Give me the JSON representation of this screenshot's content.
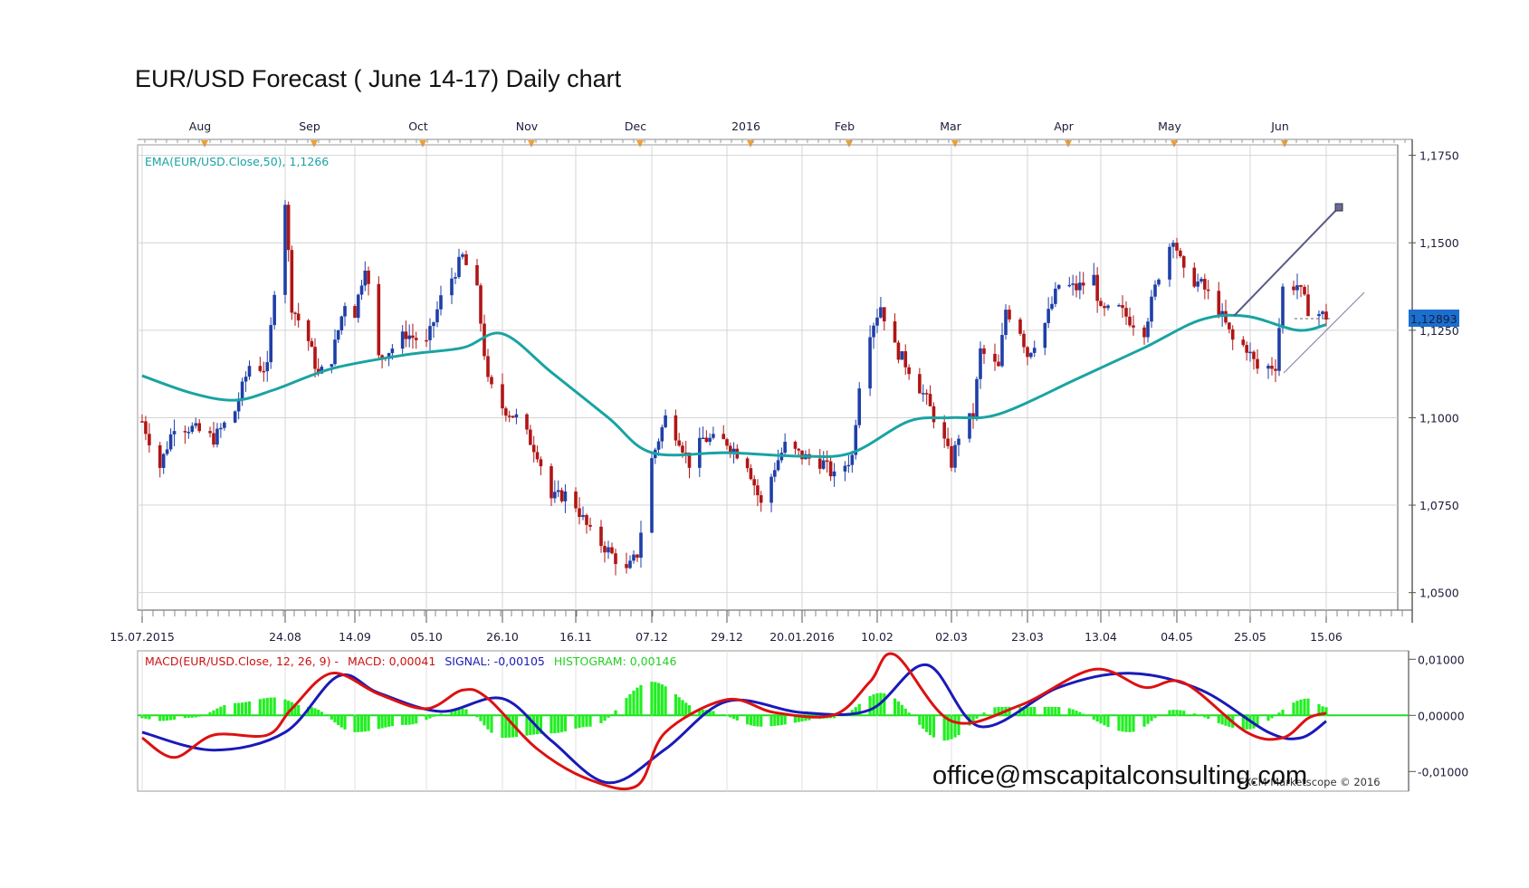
{
  "title": "EUR/USD Forecast ( June 14-17) Daily chart",
  "watermark": "office@mscapitalconsulting.com",
  "credit": "FXCM Marketscope © 2016",
  "colors": {
    "bull": "#1f3fa8",
    "bear": "#b01515",
    "ema": "#1aa3a3",
    "macd": "#dd1111",
    "signal": "#1a1ab8",
    "histogram": "#22ee22",
    "price_tag": "#1a6fd0"
  },
  "chart_data": [
    {
      "type": "candlestick",
      "ylim": [
        1.045,
        1.178
      ],
      "y_ticks": [
        "1,1750",
        "1,1500",
        "1,1250",
        "1,1000",
        "1,0750",
        "1,0500"
      ],
      "x_tick_labels": [
        "15.07.2015",
        "24.08",
        "14.09",
        "05.10",
        "26.10",
        "16.11",
        "07.12",
        "29.12",
        "20.01.2016",
        "10.02",
        "02.03",
        "23.03",
        "13.04",
        "04.05",
        "25.05",
        "15.06"
      ],
      "month_labels": [
        "Aug",
        "Sep",
        "Oct",
        "Nov",
        "Dec",
        "2016",
        "Feb",
        "Mar",
        "Apr",
        "May",
        "Jun"
      ],
      "indicator": {
        "label": "EMA(EUR/USD.Close,50), 1,1266"
      },
      "current_price": "1,12893",
      "close_path": [
        {
          "d": "15.07.2015",
          "v": 1.099
        },
        {
          "d": "20.07",
          "v": 1.086
        },
        {
          "d": "24.07",
          "v": 1.098
        },
        {
          "d": "29.07",
          "v": 1.097
        },
        {
          "d": "04.08",
          "v": 1.094
        },
        {
          "d": "10.08",
          "v": 1.102
        },
        {
          "d": "14.08",
          "v": 1.115
        },
        {
          "d": "19.08",
          "v": 1.114
        },
        {
          "d": "21.08",
          "v": 1.137
        },
        {
          "d": "24.08",
          "v": 1.162
        },
        {
          "d": "26.08",
          "v": 1.132
        },
        {
          "d": "31.08",
          "v": 1.122
        },
        {
          "d": "03.09",
          "v": 1.112
        },
        {
          "d": "07.09",
          "v": 1.117
        },
        {
          "d": "11.09",
          "v": 1.133
        },
        {
          "d": "14.09",
          "v": 1.13
        },
        {
          "d": "17.09",
          "v": 1.144
        },
        {
          "d": "21.09",
          "v": 1.117
        },
        {
          "d": "25.09",
          "v": 1.12
        },
        {
          "d": "29.09",
          "v": 1.124
        },
        {
          "d": "05.10",
          "v": 1.121
        },
        {
          "d": "09.10",
          "v": 1.134
        },
        {
          "d": "15.10",
          "v": 1.146
        },
        {
          "d": "19.10",
          "v": 1.136
        },
        {
          "d": "22.10",
          "v": 1.11
        },
        {
          "d": "26.10",
          "v": 1.103
        },
        {
          "d": "30.10",
          "v": 1.1
        },
        {
          "d": "05.11",
          "v": 1.09
        },
        {
          "d": "09.11",
          "v": 1.077
        },
        {
          "d": "13.11",
          "v": 1.078
        },
        {
          "d": "16.11",
          "v": 1.075
        },
        {
          "d": "20.11",
          "v": 1.067
        },
        {
          "d": "25.11",
          "v": 1.062
        },
        {
          "d": "30.11",
          "v": 1.056
        },
        {
          "d": "03.12",
          "v": 1.061
        },
        {
          "d": "07.12",
          "v": 1.088
        },
        {
          "d": "11.12",
          "v": 1.1
        },
        {
          "d": "15.12",
          "v": 1.094
        },
        {
          "d": "18.12",
          "v": 1.087
        },
        {
          "d": "22.12",
          "v": 1.094
        },
        {
          "d": "29.12",
          "v": 1.093
        },
        {
          "d": "04.01",
          "v": 1.087
        },
        {
          "d": "08.01",
          "v": 1.075
        },
        {
          "d": "12.01",
          "v": 1.086
        },
        {
          "d": "15.01",
          "v": 1.092
        },
        {
          "d": "20.01.2016",
          "v": 1.089
        },
        {
          "d": "26.01",
          "v": 1.087
        },
        {
          "d": "29.01",
          "v": 1.083
        },
        {
          "d": "03.02",
          "v": 1.089
        },
        {
          "d": "05.02",
          "v": 1.11
        },
        {
          "d": "08.02",
          "v": 1.125
        },
        {
          "d": "11.02",
          "v": 1.132
        },
        {
          "d": "15.02",
          "v": 1.12
        },
        {
          "d": "19.02",
          "v": 1.114
        },
        {
          "d": "24.02",
          "v": 1.105
        },
        {
          "d": "29.02",
          "v": 1.093
        },
        {
          "d": "02.03",
          "v": 1.087
        },
        {
          "d": "04.03",
          "v": 1.095
        },
        {
          "d": "08.03",
          "v": 1.101
        },
        {
          "d": "10.03",
          "v": 1.119
        },
        {
          "d": "15.03",
          "v": 1.114
        },
        {
          "d": "17.03",
          "v": 1.131
        },
        {
          "d": "21.03",
          "v": 1.125
        },
        {
          "d": "23.03",
          "v": 1.118
        },
        {
          "d": "28.03",
          "v": 1.127
        },
        {
          "d": "01.04",
          "v": 1.138
        },
        {
          "d": "06.04",
          "v": 1.137
        },
        {
          "d": "11.04",
          "v": 1.14
        },
        {
          "d": "13.04",
          "v": 1.13
        },
        {
          "d": "18.04",
          "v": 1.131
        },
        {
          "d": "21.04",
          "v": 1.128
        },
        {
          "d": "25.04",
          "v": 1.125
        },
        {
          "d": "29.04",
          "v": 1.141
        },
        {
          "d": "03.05",
          "v": 1.152
        },
        {
          "d": "06.05",
          "v": 1.141
        },
        {
          "d": "11.05",
          "v": 1.138
        },
        {
          "d": "16.05",
          "v": 1.131
        },
        {
          "d": "20.05",
          "v": 1.122
        },
        {
          "d": "24.05",
          "v": 1.12
        },
        {
          "d": "27.05",
          "v": 1.114
        },
        {
          "d": "01.06",
          "v": 1.115
        },
        {
          "d": "03.06",
          "v": 1.137
        },
        {
          "d": "07.06",
          "v": 1.138
        },
        {
          "d": "10.06",
          "v": 1.131
        },
        {
          "d": "15.06",
          "v": 1.1289
        }
      ],
      "ema_path": [
        {
          "d": "15.07.2015",
          "v": 1.112
        },
        {
          "d": "29.07",
          "v": 1.107
        },
        {
          "d": "10.08",
          "v": 1.105
        },
        {
          "d": "21.08",
          "v": 1.108
        },
        {
          "d": "07.09",
          "v": 1.114
        },
        {
          "d": "29.09",
          "v": 1.118
        },
        {
          "d": "15.10",
          "v": 1.12
        },
        {
          "d": "26.10",
          "v": 1.124
        },
        {
          "d": "09.11",
          "v": 1.113
        },
        {
          "d": "25.11",
          "v": 1.1
        },
        {
          "d": "07.12",
          "v": 1.09
        },
        {
          "d": "29.12",
          "v": 1.09
        },
        {
          "d": "20.01.2016",
          "v": 1.089
        },
        {
          "d": "03.02",
          "v": 1.09
        },
        {
          "d": "19.02",
          "v": 1.099
        },
        {
          "d": "02.03",
          "v": 1.1
        },
        {
          "d": "15.03",
          "v": 1.101
        },
        {
          "d": "06.04",
          "v": 1.111
        },
        {
          "d": "25.04",
          "v": 1.12
        },
        {
          "d": "11.05",
          "v": 1.128
        },
        {
          "d": "24.05",
          "v": 1.129
        },
        {
          "d": "07.06",
          "v": 1.125
        },
        {
          "d": "15.06",
          "v": 1.1266
        }
      ]
    },
    {
      "type": "line",
      "label": {
        "prefix": "MACD(EUR/USD.Close, 12, 26, 9) -",
        "macd": "MACD: 0,00041",
        "signal": "SIGNAL: -0,00105",
        "histogram": "HISTOGRAM: 0,00146"
      },
      "ylim": [
        -0.0135,
        0.0115
      ],
      "y_ticks": [
        "0,01000",
        "0,00000",
        "-0,01000"
      ],
      "series": [
        {
          "name": "MACD",
          "values": [
            {
              "d": "15.07.2015",
              "v": -0.004
            },
            {
              "d": "24.07",
              "v": -0.0075
            },
            {
              "d": "04.08",
              "v": -0.0035
            },
            {
              "d": "19.08",
              "v": -0.0035
            },
            {
              "d": "26.08",
              "v": 0.0012
            },
            {
              "d": "07.09",
              "v": 0.0075
            },
            {
              "d": "21.09",
              "v": 0.0038
            },
            {
              "d": "05.10",
              "v": 0.0012
            },
            {
              "d": "15.10",
              "v": 0.0045
            },
            {
              "d": "22.10",
              "v": 0.003
            },
            {
              "d": "05.11",
              "v": -0.006
            },
            {
              "d": "20.11",
              "v": -0.0115
            },
            {
              "d": "03.12",
              "v": -0.0125
            },
            {
              "d": "11.12",
              "v": -0.003
            },
            {
              "d": "29.12",
              "v": 0.0028
            },
            {
              "d": "12.01",
              "v": 0.0005
            },
            {
              "d": "29.01",
              "v": 0.0001
            },
            {
              "d": "08.02",
              "v": 0.006
            },
            {
              "d": "15.02",
              "v": 0.0108
            },
            {
              "d": "02.03",
              "v": -0.001
            },
            {
              "d": "21.03",
              "v": 0.0018
            },
            {
              "d": "11.04",
              "v": 0.0082
            },
            {
              "d": "25.04",
              "v": 0.005
            },
            {
              "d": "06.05",
              "v": 0.0058
            },
            {
              "d": "24.05",
              "v": -0.003
            },
            {
              "d": "03.06",
              "v": -0.004
            },
            {
              "d": "10.06",
              "v": -0.0005
            },
            {
              "d": "15.06",
              "v": 0.00041
            }
          ]
        },
        {
          "name": "SIGNAL",
          "values": [
            {
              "d": "15.07.2015",
              "v": -0.003
            },
            {
              "d": "04.08",
              "v": -0.0062
            },
            {
              "d": "24.08",
              "v": -0.003
            },
            {
              "d": "09.09",
              "v": 0.007
            },
            {
              "d": "21.09",
              "v": 0.004
            },
            {
              "d": "09.10",
              "v": 0.0007
            },
            {
              "d": "26.10",
              "v": 0.003
            },
            {
              "d": "09.11",
              "v": -0.0045
            },
            {
              "d": "25.11",
              "v": -0.012
            },
            {
              "d": "11.12",
              "v": -0.006
            },
            {
              "d": "29.12",
              "v": 0.0025
            },
            {
              "d": "20.01.2016",
              "v": 0.0005
            },
            {
              "d": "08.02",
              "v": 0.001
            },
            {
              "d": "24.02",
              "v": 0.009
            },
            {
              "d": "10.03",
              "v": -0.002
            },
            {
              "d": "01.04",
              "v": 0.005
            },
            {
              "d": "21.04",
              "v": 0.0075
            },
            {
              "d": "11.05",
              "v": 0.0045
            },
            {
              "d": "30.05",
              "v": -0.003
            },
            {
              "d": "08.06",
              "v": -0.004
            },
            {
              "d": "15.06",
              "v": -0.00105
            }
          ]
        },
        {
          "name": "HISTOGRAM",
          "type": "bar",
          "values": [
            {
              "d": "20.07",
              "v": -0.001
            },
            {
              "d": "29.07",
              "v": -0.0004
            },
            {
              "d": "10.08",
              "v": 0.0022
            },
            {
              "d": "21.08",
              "v": 0.0032
            },
            {
              "d": "31.08",
              "v": 0.0015
            },
            {
              "d": "14.09",
              "v": -0.003
            },
            {
              "d": "29.09",
              "v": -0.0017
            },
            {
              "d": "15.10",
              "v": 0.0012
            },
            {
              "d": "26.10",
              "v": -0.004
            },
            {
              "d": "09.11",
              "v": -0.0032
            },
            {
              "d": "20.11",
              "v": -0.002
            },
            {
              "d": "07.12",
              "v": 0.006
            },
            {
              "d": "22.12",
              "v": 0.001
            },
            {
              "d": "08.01",
              "v": -0.002
            },
            {
              "d": "29.01",
              "v": -0.0005
            },
            {
              "d": "11.02",
              "v": 0.004
            },
            {
              "d": "29.02",
              "v": -0.0045
            },
            {
              "d": "15.03",
              "v": 0.0015
            },
            {
              "d": "01.04",
              "v": 0.0015
            },
            {
              "d": "21.04",
              "v": -0.003
            },
            {
              "d": "03.05",
              "v": 0.001
            },
            {
              "d": "24.05",
              "v": -0.0025
            },
            {
              "d": "10.06",
              "v": 0.003
            },
            {
              "d": "15.06",
              "v": 0.00146
            }
          ]
        }
      ]
    }
  ]
}
